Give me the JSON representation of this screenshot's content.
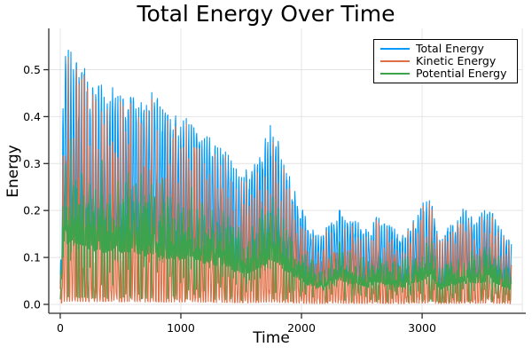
{
  "chart_data": {
    "type": "line",
    "title": "Total Energy Over Time",
    "xlabel": "Time",
    "ylabel": "Energy",
    "xlim": [
      -95,
      3830
    ],
    "ylim": [
      -0.019,
      0.588
    ],
    "xticks": {
      "values": [
        0,
        1000,
        2000,
        3000
      ],
      "labels": [
        "0",
        "1000",
        "2000",
        "3000"
      ]
    },
    "yticks": {
      "values": [
        0.0,
        0.1,
        0.2,
        0.3,
        0.4,
        0.5
      ],
      "labels": [
        "0.0",
        "0.1",
        "0.2",
        "0.3",
        "0.4",
        "0.5"
      ]
    },
    "grid": true,
    "legend_position": "top-right-inside",
    "colors": {
      "grid": "#e4e4e4",
      "axis": "#2b2b2b",
      "text": "#000000",
      "legend_border": "#000000",
      "background": "#ffffff"
    },
    "series": [
      {
        "name": "Total Energy",
        "color": "#009AFA",
        "role": "total"
      },
      {
        "name": "Kinetic Energy",
        "color": "#E26E46",
        "role": "kinetic"
      },
      {
        "name": "Potential Energy",
        "color": "#3DA44D",
        "role": "potential"
      }
    ],
    "description": "Three rapidly oscillating, slowly decaying energy traces; kinetic and potential oscillate out of phase beneath the total. Series are reconstructed from the peak envelope below.",
    "envelope": {
      "t": [
        0,
        30,
        80,
        150,
        250,
        350,
        450,
        550,
        650,
        750,
        850,
        950,
        1050,
        1150,
        1250,
        1350,
        1450,
        1550,
        1650,
        1700,
        1780,
        1850,
        1900,
        1950,
        2000,
        2050,
        2100,
        2150,
        2250,
        2350,
        2450,
        2550,
        2650,
        2750,
        2850,
        2950,
        3050,
        3150,
        3250,
        3350,
        3450,
        3550,
        3650,
        3742
      ],
      "total_max": [
        0.05,
        0.58,
        0.57,
        0.55,
        0.52,
        0.48,
        0.48,
        0.46,
        0.46,
        0.45,
        0.43,
        0.41,
        0.43,
        0.39,
        0.37,
        0.35,
        0.31,
        0.28,
        0.33,
        0.36,
        0.4,
        0.31,
        0.28,
        0.24,
        0.21,
        0.18,
        0.165,
        0.16,
        0.19,
        0.21,
        0.18,
        0.16,
        0.21,
        0.17,
        0.16,
        0.19,
        0.25,
        0.14,
        0.18,
        0.21,
        0.19,
        0.21,
        0.17,
        0.14
      ]
    },
    "oscillation": {
      "period": 22,
      "dt": 2.6,
      "t_end": 3742,
      "seed": 11,
      "total_floor": 0.25,
      "kinetic_floor": 0.04,
      "kinetic_peak": 0.92,
      "value_cap": 0.585
    }
  }
}
